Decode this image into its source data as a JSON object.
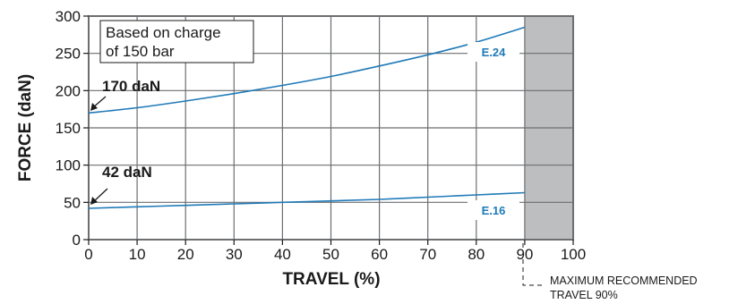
{
  "chart_data": {
    "type": "line",
    "xlabel": "TRAVEL (%)",
    "ylabel": "FORCE (daN)",
    "xlim": [
      0,
      100
    ],
    "ylim": [
      0,
      300
    ],
    "xticks": [
      0,
      10,
      20,
      30,
      40,
      50,
      60,
      70,
      80,
      90,
      100
    ],
    "yticks": [
      0,
      50,
      100,
      150,
      200,
      250,
      300
    ],
    "grid": true,
    "shaded_region": {
      "x_from": 90,
      "x_to": 100,
      "color": "#bcbec0"
    },
    "series": [
      {
        "name": "E.24",
        "color": "#1f7ab8",
        "x": [
          0,
          10,
          20,
          30,
          40,
          50,
          60,
          70,
          80,
          90
        ],
        "y": [
          170,
          177,
          186,
          196,
          207,
          219,
          233,
          248,
          265,
          285
        ]
      },
      {
        "name": "E.16",
        "color": "#1f7ab8",
        "x": [
          0,
          10,
          20,
          30,
          40,
          50,
          60,
          70,
          80,
          90
        ],
        "y": [
          42,
          44,
          46,
          48,
          50,
          52,
          54,
          57,
          60,
          63
        ]
      }
    ],
    "annotations": {
      "note_line1": "Based on charge",
      "note_line2": "of 150 bar",
      "start_e24": "170 daN",
      "start_e16": "42 daN",
      "max_line1": "MAXIMUM RECOMMENDED",
      "max_line2": "TRAVEL 90%"
    }
  }
}
